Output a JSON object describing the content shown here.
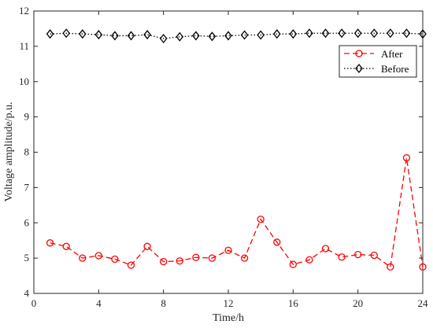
{
  "chart_data": {
    "type": "line",
    "xlabel": "Time/h",
    "ylabel": "Voltage amplitude/p.u.",
    "xlim": [
      0,
      24
    ],
    "ylim": [
      4,
      12
    ],
    "xticks": [
      0,
      4,
      8,
      12,
      16,
      20,
      24
    ],
    "yticks": [
      4,
      5,
      6,
      7,
      8,
      9,
      10,
      11,
      12
    ],
    "grid": false,
    "legend_position": "top-right",
    "x": [
      1,
      2,
      3,
      4,
      5,
      6,
      7,
      8,
      9,
      10,
      11,
      12,
      13,
      14,
      15,
      16,
      17,
      18,
      19,
      20,
      21,
      22,
      23,
      24
    ],
    "series": [
      {
        "name": "After",
        "color": "#ff0000",
        "line_style": "dashed",
        "marker": "circle",
        "values": [
          5.43,
          5.33,
          5.0,
          5.07,
          4.97,
          4.8,
          5.33,
          4.9,
          4.92,
          5.02,
          5.0,
          5.22,
          5.0,
          6.1,
          5.45,
          4.82,
          4.95,
          5.27,
          5.03,
          5.1,
          5.08,
          4.75,
          7.84,
          4.75
        ]
      },
      {
        "name": "Before",
        "color": "#000000",
        "line_style": "dotted",
        "marker": "diamond",
        "values": [
          11.35,
          11.37,
          11.35,
          11.33,
          11.3,
          11.3,
          11.33,
          11.22,
          11.27,
          11.3,
          11.28,
          11.3,
          11.32,
          11.32,
          11.35,
          11.35,
          11.37,
          11.37,
          11.37,
          11.37,
          11.37,
          11.37,
          11.37,
          11.35
        ]
      }
    ]
  }
}
